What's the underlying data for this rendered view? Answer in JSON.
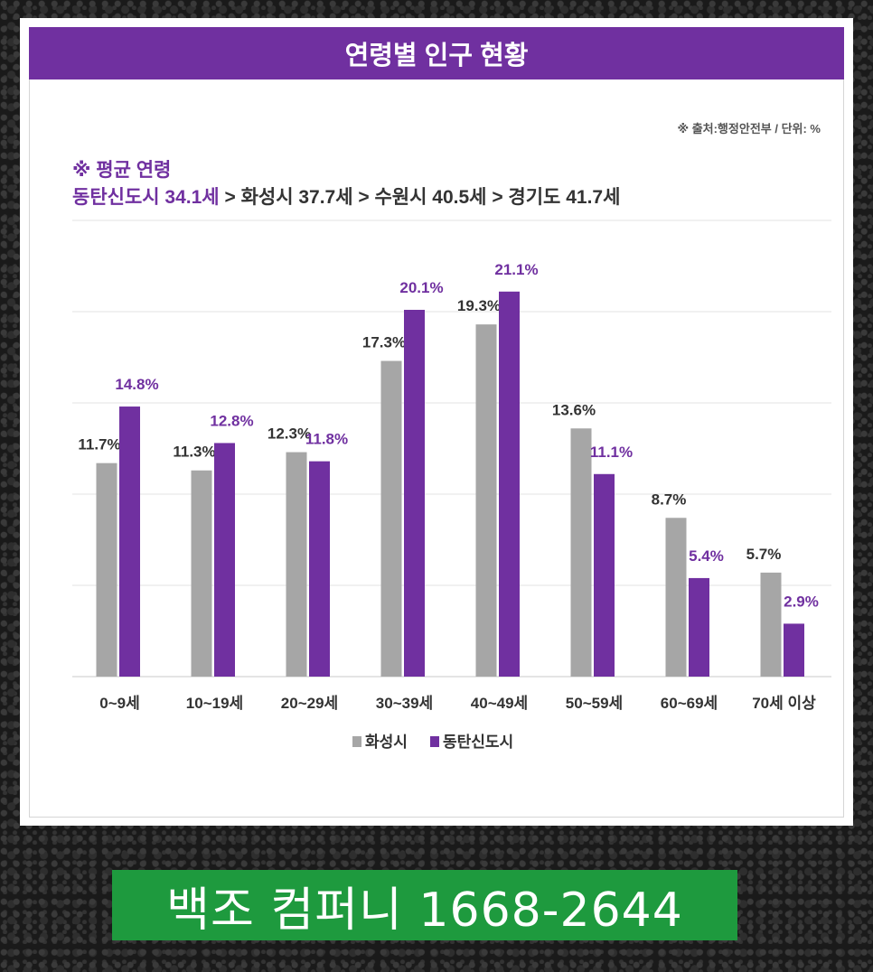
{
  "title": "연령별 인구 현황",
  "source_note": "※ 출처:행정안전부 / 단위: %",
  "average_heading": "※ 평균 연령",
  "average_line": {
    "highlight": "동탄신도시 34.1세",
    "rest": " > 화성시 37.7세 > 수원시 40.5세 > 경기도 41.7세"
  },
  "chart_data": {
    "type": "bar",
    "categories": [
      "0~9세",
      "10~19세",
      "20~29세",
      "30~39세",
      "40~49세",
      "50~59세",
      "60~69세",
      "70세 이상"
    ],
    "series": [
      {
        "name": "화성시",
        "color": "#a6a6a6",
        "label_color": "#333333",
        "values": [
          11.7,
          11.3,
          12.3,
          17.3,
          19.3,
          13.6,
          8.7,
          5.7
        ],
        "labels": [
          "11.7%",
          "11.3%",
          "12.3%",
          "17.3%",
          "19.3%",
          "13.6%",
          "8.7%",
          "5.7%"
        ]
      },
      {
        "name": "동탄신도시",
        "color": "#7030a0",
        "label_color": "#7030a0",
        "values": [
          14.8,
          12.8,
          11.8,
          20.1,
          21.1,
          11.1,
          5.4,
          2.9
        ],
        "labels": [
          "14.8%",
          "12.8%",
          "11.8%",
          "20.1%",
          "21.1%",
          "11.1%",
          "5.4%",
          "2.9%"
        ]
      }
    ],
    "ylim": [
      0,
      25
    ],
    "grid": true,
    "legend": "bottom",
    "xlabel": "",
    "ylabel": ""
  },
  "banner_text": "백조 컴퍼니 1668-2644"
}
